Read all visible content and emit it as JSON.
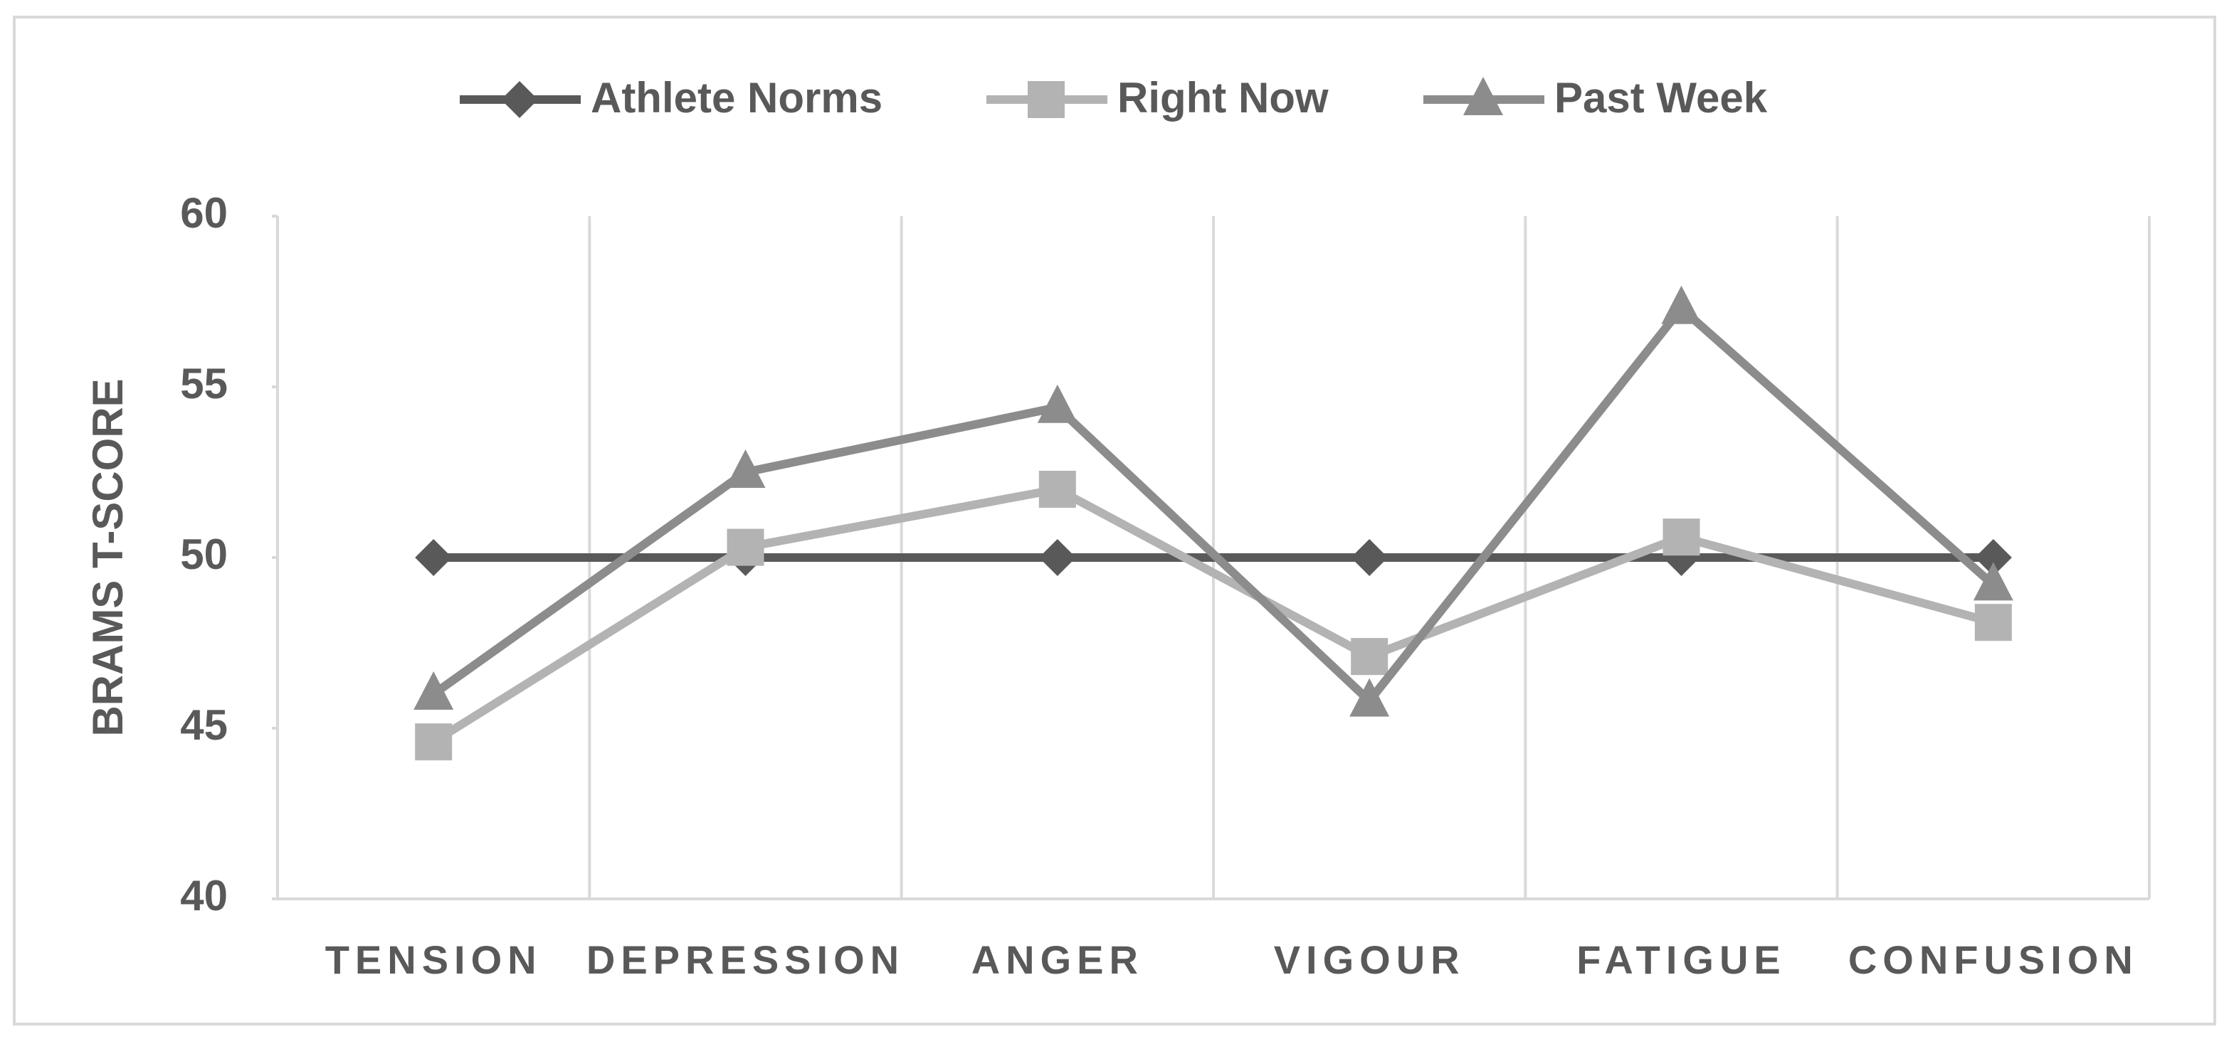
{
  "chart_data": {
    "type": "line",
    "ylabel": "BRAMS T-SCORE",
    "categories": [
      "TENSION",
      "DEPRESSION",
      "ANGER",
      "VIGOUR",
      "FATIGUE",
      "CONFUSION"
    ],
    "series": [
      {
        "name": "Athlete Norms",
        "color": "#595959",
        "values": [
          50,
          50,
          50,
          50,
          50,
          50
        ]
      },
      {
        "name": "Right Now",
        "color": "#b3b3b3",
        "values": [
          44.6,
          50.3,
          52.0,
          47.1,
          50.6,
          48.1
        ]
      },
      {
        "name": "Past Week",
        "color": "#8c8c8c",
        "values": [
          46.0,
          52.5,
          54.4,
          45.8,
          57.3,
          49.2
        ]
      }
    ],
    "ylim": [
      40,
      60
    ],
    "yticks": [
      40,
      45,
      50,
      55,
      60
    ],
    "legend": "top"
  }
}
